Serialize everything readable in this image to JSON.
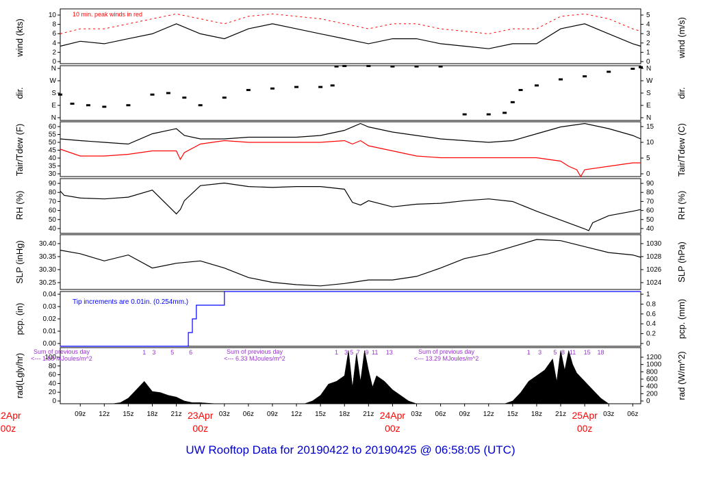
{
  "title": "UW Rooftop Data for 20190422  to  20190425 @ 06:58:05  (UTC)",
  "colors": {
    "title": "#0000cc",
    "red": "#ff0000",
    "blue": "#0000ff",
    "purple": "#9933cc",
    "line": "#000000"
  },
  "x_axis": {
    "ticks": [
      "09z",
      "12z",
      "15z",
      "18z",
      "21z",
      "23Apr",
      "03z",
      "06z",
      "09z",
      "12z",
      "15z",
      "18z",
      "21z",
      "24Apr",
      "03z",
      "06z",
      "09z",
      "12z",
      "15z",
      "18z",
      "21z",
      "25Apr",
      "03z",
      "06z"
    ],
    "day_labels": [
      {
        "date": "22Apr",
        "time": "00z"
      },
      {
        "date": "23Apr",
        "time": "00z"
      },
      {
        "date": "24Apr",
        "time": "00z"
      },
      {
        "date": "25Apr",
        "time": "00z"
      }
    ],
    "range_hours": [
      6.5,
      79.0
    ]
  },
  "chart_data": [
    {
      "type": "line",
      "id": "wind",
      "ylabel_left": "wind (kts)",
      "ylabel_right": "wind (m/s)",
      "ylim": [
        0,
        11
      ],
      "yticks_left": [
        0,
        2,
        4,
        6,
        8,
        10
      ],
      "yticks_right": [
        0,
        1,
        2,
        3,
        4,
        5
      ],
      "annotation": "10 min. peak winds in red",
      "series": [
        {
          "name": "wind speed (kts)",
          "color": "#000000",
          "x": [
            6.5,
            9,
            12,
            15,
            18,
            21,
            24,
            27,
            30,
            33,
            36,
            39,
            42,
            45,
            48,
            51,
            54,
            57,
            60,
            63,
            66,
            69,
            72,
            75,
            78,
            79
          ],
          "y": [
            3.5,
            4.5,
            4,
            5,
            6,
            8,
            6,
            5,
            7,
            8,
            7,
            6,
            5,
            4,
            5,
            5,
            4,
            3.5,
            3,
            4,
            4,
            7,
            8,
            6,
            4,
            3.5
          ]
        },
        {
          "name": "10 min. peak winds",
          "color": "#ff0000",
          "x": [
            6.5,
            9,
            12,
            15,
            18,
            21,
            24,
            27,
            30,
            33,
            36,
            39,
            42,
            45,
            48,
            51,
            54,
            57,
            60,
            63,
            66,
            69,
            72,
            75,
            78,
            79
          ],
          "y": [
            6,
            7,
            7,
            8,
            9,
            10,
            9,
            8,
            9.5,
            10,
            9.5,
            9,
            8,
            7,
            8,
            8,
            7,
            6.5,
            6,
            7,
            7,
            9.5,
            10,
            9,
            7,
            6.5
          ]
        }
      ]
    },
    {
      "type": "scatter",
      "id": "dir",
      "ylabel_left": "dir.",
      "ylabel_right": "dir.",
      "ylim": [
        0,
        360
      ],
      "yticks_left": [
        "N",
        "E",
        "S",
        "W",
        "N"
      ],
      "yticks_right": [
        "N",
        "E",
        "S",
        "W",
        "N"
      ],
      "series": [
        {
          "name": "wind direction (deg)",
          "color": "#000000",
          "x": [
            6.5,
            8,
            10,
            12,
            15,
            18,
            20,
            22,
            24,
            27,
            30,
            33,
            36,
            39,
            40.5,
            41,
            42,
            45,
            48,
            51,
            54,
            57,
            60,
            62,
            63,
            64,
            66,
            69,
            72,
            75,
            78,
            79
          ],
          "y": [
            170,
            110,
            100,
            90,
            100,
            170,
            180,
            150,
            100,
            150,
            200,
            210,
            220,
            220,
            230,
            355,
            358,
            358,
            355,
            355,
            355,
            40,
            40,
            50,
            120,
            200,
            230,
            270,
            290,
            320,
            340,
            350
          ]
        }
      ]
    },
    {
      "type": "line",
      "id": "temp",
      "ylabel_left": "Tair/Tdew (F)",
      "ylabel_right": "Tair/Tdew (C)",
      "ylim": [
        29,
        61
      ],
      "yticks_left": [
        30,
        35,
        40,
        45,
        50,
        55,
        60
      ],
      "yticks_right": [
        0,
        5,
        10,
        15
      ],
      "series": [
        {
          "name": "Tair",
          "color": "#000000",
          "x": [
            6.5,
            9,
            12,
            15,
            18,
            21,
            22,
            24,
            27,
            30,
            33,
            36,
            39,
            42,
            44,
            45,
            46,
            48,
            51,
            54,
            57,
            60,
            63,
            66,
            69,
            72,
            75,
            78,
            79
          ],
          "y": [
            51,
            50,
            49,
            48,
            54,
            57,
            53,
            51,
            51,
            52,
            52,
            52,
            53,
            56,
            60,
            58,
            57,
            55,
            53,
            51,
            50,
            49,
            50,
            54,
            58,
            60,
            57,
            53,
            51
          ]
        },
        {
          "name": "Tdew",
          "color": "#ff0000",
          "x": [
            6.5,
            9,
            12,
            15,
            18,
            21,
            21.5,
            22,
            24,
            27,
            30,
            33,
            36,
            39,
            42,
            43,
            44,
            45,
            48,
            51,
            54,
            57,
            60,
            63,
            66,
            69,
            70,
            71,
            71.5,
            72,
            75,
            78,
            79
          ],
          "y": [
            45,
            41,
            41,
            42,
            44,
            44,
            39,
            43,
            48,
            50,
            49,
            49,
            49,
            49,
            50,
            48,
            50,
            47,
            44,
            41,
            40,
            40,
            40,
            40,
            40,
            38,
            35,
            33,
            29,
            33,
            35,
            37,
            37
          ]
        }
      ]
    },
    {
      "type": "line",
      "id": "rh",
      "ylabel_left": "RH (%)",
      "ylabel_right": "RH (%)",
      "ylim": [
        33,
        95
      ],
      "yticks_left": [
        40,
        50,
        60,
        70,
        80,
        90
      ],
      "yticks_right": [
        40,
        50,
        60,
        70,
        80,
        90
      ],
      "series": [
        {
          "name": "RH",
          "color": "#000000",
          "x": [
            6.5,
            7,
            9,
            12,
            15,
            18,
            21,
            21.5,
            22,
            24,
            27,
            30,
            33,
            36,
            39,
            42,
            43,
            44,
            45,
            48,
            51,
            54,
            57,
            60,
            63,
            66,
            69,
            72,
            72.5,
            73,
            75,
            78,
            79
          ],
          "y": [
            81,
            76,
            73,
            72,
            74,
            82,
            55,
            60,
            70,
            87,
            90,
            86,
            85,
            86,
            86,
            83,
            68,
            65,
            70,
            63,
            66,
            67,
            70,
            72,
            69,
            58,
            48,
            38,
            36,
            45,
            53,
            58,
            60
          ]
        }
      ]
    },
    {
      "type": "line",
      "id": "slp",
      "ylabel_left": "SLP (inHg)",
      "ylabel_right": "SLP (hPa)",
      "ylim": [
        30.21,
        30.44
      ],
      "yticks_left": [
        "30.25",
        "30.30",
        "30.35",
        "30.40"
      ],
      "yticks_right": [
        1024,
        1026,
        1028,
        1030
      ],
      "series": [
        {
          "name": "SLP",
          "color": "#000000",
          "x": [
            6.5,
            9,
            12,
            15,
            18,
            21,
            24,
            27,
            30,
            33,
            36,
            39,
            42,
            45,
            48,
            51,
            54,
            57,
            60,
            63,
            66,
            69,
            72,
            75,
            78,
            79
          ],
          "y": [
            30.375,
            30.36,
            30.33,
            30.355,
            30.3,
            30.32,
            30.33,
            30.3,
            30.26,
            30.24,
            30.23,
            30.225,
            30.235,
            30.25,
            30.25,
            30.265,
            30.3,
            30.34,
            30.36,
            30.39,
            30.42,
            30.415,
            30.39,
            30.365,
            30.355,
            30.345
          ]
        }
      ]
    },
    {
      "type": "step",
      "id": "pcp",
      "ylabel_left": "pcp. (in)",
      "ylabel_right": "pcp. (mm)",
      "ylim": [
        0,
        0.04
      ],
      "yticks_left": [
        "0.00",
        "0.01",
        "0.02",
        "0.03",
        "0.04"
      ],
      "yticks_right": [
        0,
        0.2,
        0.4,
        0.6,
        0.8,
        1
      ],
      "annotation": "Tip increments are 0.01in. (0.254mm.)",
      "series": [
        {
          "name": "cumulative precip",
          "color": "#0000ff",
          "x": [
            6.5,
            22.5,
            22.5,
            23,
            23,
            23.5,
            23.5,
            24.5,
            24.5,
            27,
            27,
            79
          ],
          "y": [
            0,
            0,
            0.01,
            0.01,
            0.02,
            0.02,
            0.03,
            0.03,
            0.03,
            0.03,
            0.04,
            0.04
          ]
        }
      ]
    },
    {
      "type": "area",
      "id": "rad",
      "ylabel_left": "rad(Lgly/hr)",
      "ylabel_right": "rad (W/m^2)",
      "ylim": [
        0,
        100
      ],
      "yticks_left": [
        0,
        20,
        40,
        60,
        80,
        100
      ],
      "yticks_right": [
        0,
        200,
        400,
        600,
        800,
        1000,
        1200
      ],
      "series": [
        {
          "name": "solar radiation",
          "color": "#000000",
          "x": [
            6.5,
            13,
            14,
            15,
            16,
            17,
            18,
            19,
            20,
            21,
            22,
            23,
            24,
            25,
            26,
            37,
            38,
            39,
            40,
            41,
            42,
            42.5,
            43,
            43.5,
            44,
            44.5,
            45,
            45.5,
            46,
            47,
            48,
            49,
            50,
            51,
            62,
            63,
            64,
            65,
            66,
            67,
            68,
            68.5,
            69,
            69.5,
            70,
            70.5,
            71,
            72,
            73,
            74,
            75,
            79
          ],
          "y": [
            0,
            0,
            2,
            10,
            25,
            40,
            22,
            20,
            15,
            12,
            5,
            2,
            2,
            1,
            0,
            0,
            5,
            15,
            35,
            40,
            50,
            95,
            30,
            90,
            40,
            95,
            60,
            30,
            50,
            40,
            25,
            15,
            5,
            0,
            0,
            5,
            20,
            40,
            50,
            60,
            80,
            40,
            95,
            60,
            95,
            70,
            55,
            40,
            25,
            10,
            0,
            0
          ]
        }
      ],
      "annotations": [
        {
          "text": "Sum of previous day",
          "line2": "<--- 1.88 MJoules/m^2"
        },
        {
          "text": "Sum of previous day",
          "line2": "<--- 6.33 MJoules/m^2"
        },
        {
          "text": "Sum of previous day",
          "line2": "<--- 13.29 MJoules/m^2"
        }
      ],
      "hour_marks": [
        {
          "x": 17,
          "label": "1"
        },
        {
          "x": 18.2,
          "label": "3"
        },
        {
          "x": 20.5,
          "label": "5"
        },
        {
          "x": 22.8,
          "label": "6"
        },
        {
          "x": 41,
          "label": "1"
        },
        {
          "x": 42.2,
          "label": "3"
        },
        {
          "x": 42.9,
          "label": "5"
        },
        {
          "x": 43.7,
          "label": "7"
        },
        {
          "x": 44.8,
          "label": "9"
        },
        {
          "x": 45.8,
          "label": "11"
        },
        {
          "x": 47.6,
          "label": "13"
        },
        {
          "x": 65,
          "label": "1"
        },
        {
          "x": 66.4,
          "label": "3"
        },
        {
          "x": 68.3,
          "label": "5"
        },
        {
          "x": 69.3,
          "label": "8"
        },
        {
          "x": 70.5,
          "label": "11"
        },
        {
          "x": 72.3,
          "label": "15"
        },
        {
          "x": 74,
          "label": "18"
        }
      ]
    }
  ]
}
